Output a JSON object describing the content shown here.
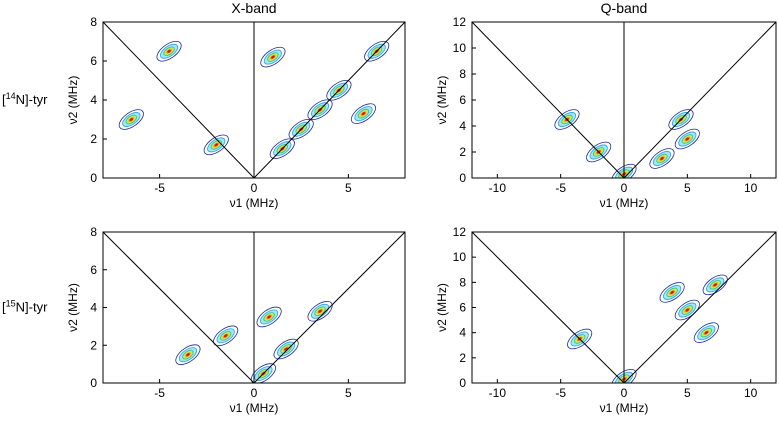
{
  "chart_data": [
    {
      "type": "contour",
      "title": "X-band",
      "row_label": {
        "open": "[",
        "isotope": "14",
        "text": "N]-tyr"
      },
      "xlabel": "ν1 (MHz)",
      "ylabel": "ν2 (MHz)",
      "xlim": [
        -8,
        8
      ],
      "ylim": [
        0,
        8
      ],
      "xticks": [
        -5,
        0,
        5
      ],
      "yticks": [
        0,
        2,
        4,
        6,
        8
      ],
      "x": [
        -6.5,
        -4.5,
        -2,
        1,
        2.5,
        3.5,
        4.5,
        6.5,
        5.8,
        1.5
      ],
      "values": [
        3.0,
        6.5,
        1.7,
        6.2,
        2.5,
        3.5,
        4.5,
        6.5,
        3.3,
        1.5
      ]
    },
    {
      "type": "contour",
      "title": "Q-band",
      "xlabel": "ν1 (MHz)",
      "ylabel": "ν2 (MHz)",
      "xlim": [
        -12,
        12
      ],
      "ylim": [
        0,
        12
      ],
      "xticks": [
        -10,
        -5,
        0,
        5,
        10
      ],
      "yticks": [
        0,
        2,
        4,
        6,
        8,
        10,
        12
      ],
      "x": [
        0,
        -4.5,
        4.5,
        5,
        3,
        -2
      ],
      "values": [
        0.3,
        4.5,
        4.5,
        3,
        1.5,
        2
      ]
    },
    {
      "type": "contour",
      "row_label": {
        "open": "[",
        "isotope": "15",
        "text": "N]-tyr"
      },
      "xlabel": "ν1 (MHz)",
      "ylabel": "ν2 (MHz)",
      "xlim": [
        -8,
        8
      ],
      "ylim": [
        0,
        8
      ],
      "xticks": [
        -5,
        0,
        5
      ],
      "yticks": [
        0,
        2,
        4,
        6,
        8
      ],
      "x": [
        0.5,
        1.7,
        -3.5,
        -1.5,
        3.5,
        0.8
      ],
      "values": [
        0.5,
        1.8,
        1.5,
        2.5,
        3.8,
        3.5
      ]
    },
    {
      "type": "contour",
      "xlabel": "ν1 (MHz)",
      "ylabel": "ν2 (MHz)",
      "xlim": [
        -12,
        12
      ],
      "ylim": [
        0,
        12
      ],
      "xticks": [
        -10,
        -5,
        0,
        5,
        10
      ],
      "yticks": [
        0,
        2,
        4,
        6,
        8,
        10,
        12
      ],
      "x": [
        0,
        3.8,
        6.5,
        5,
        -3.5,
        7.2
      ],
      "values": [
        0.3,
        7.2,
        4,
        5.8,
        3.5,
        7.8
      ]
    }
  ]
}
